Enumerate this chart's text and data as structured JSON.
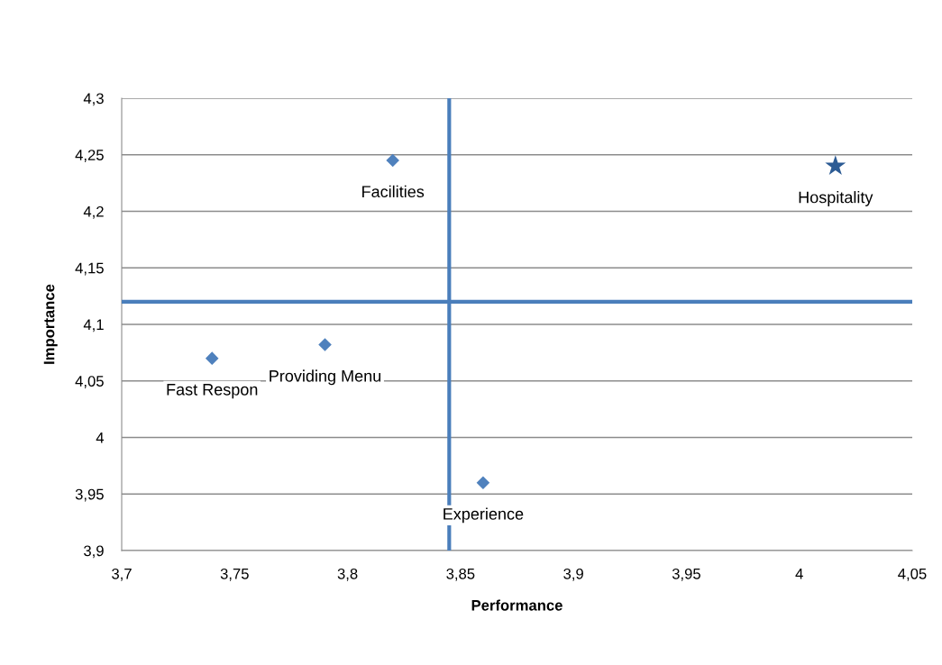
{
  "chart_data": {
    "type": "scatter",
    "xlabel": "Performance",
    "ylabel": "Importance",
    "xlim": [
      3.7,
      4.05
    ],
    "ylim": [
      3.9,
      4.3
    ],
    "xticks": [
      {
        "value": 3.7,
        "label": "3,7"
      },
      {
        "value": 3.75,
        "label": "3,75"
      },
      {
        "value": 3.8,
        "label": "3,8"
      },
      {
        "value": 3.85,
        "label": "3,85"
      },
      {
        "value": 3.9,
        "label": "3,9"
      },
      {
        "value": 3.95,
        "label": "3,95"
      },
      {
        "value": 4,
        "label": "4"
      },
      {
        "value": 4.05,
        "label": "4,05"
      }
    ],
    "yticks": [
      {
        "value": 3.9,
        "label": "3,9"
      },
      {
        "value": 3.95,
        "label": "3,95"
      },
      {
        "value": 4,
        "label": "4"
      },
      {
        "value": 4.05,
        "label": "4,05"
      },
      {
        "value": 4.1,
        "label": "4,1"
      },
      {
        "value": 4.15,
        "label": "4,15"
      },
      {
        "value": 4.2,
        "label": "4,2"
      },
      {
        "value": 4.25,
        "label": "4,25"
      },
      {
        "value": 4.3,
        "label": "4,3"
      }
    ],
    "grid": "y",
    "legend": false,
    "series": [
      {
        "color": "#4f81bd",
        "marker": "diamond",
        "x": [
          3.82,
          3.74,
          3.79,
          3.86
        ],
        "values": [
          4.245,
          4.07,
          4.082,
          3.96
        ]
      },
      {
        "color": "#2c5b94",
        "marker": "star",
        "x": [
          4.016
        ],
        "values": [
          4.24
        ]
      }
    ],
    "ref_lines": [
      {
        "axis": "x",
        "value": 3.845,
        "color": "#4a7ebb"
      },
      {
        "axis": "y",
        "value": 4.12,
        "color": "#4a7ebb"
      }
    ],
    "annotations": [
      {
        "text": "Facilities",
        "x": 3.82,
        "y": 4.245
      },
      {
        "text": "Fast Respon",
        "x": 3.74,
        "y": 4.07
      },
      {
        "text": "Providing Menu",
        "x": 3.79,
        "y": 4.082
      },
      {
        "text": "Experience",
        "x": 3.86,
        "y": 3.96
      },
      {
        "text": "Hospitality",
        "x": 4.016,
        "y": 4.24
      }
    ]
  }
}
